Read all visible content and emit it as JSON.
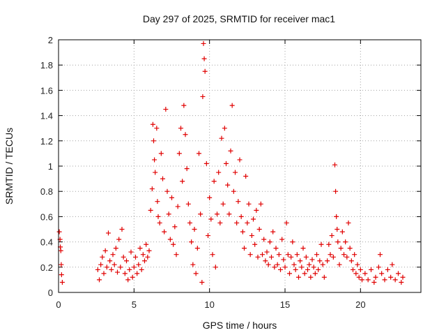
{
  "chart_data": {
    "type": "scatter",
    "title": "Day 297 of 2025, SRMTID for receiver mac1",
    "xlabel": "GPS time / hours",
    "ylabel": "SRMTID / TECUs",
    "xlim": [
      0,
      24
    ],
    "ylim": [
      0,
      2
    ],
    "x_ticks": [
      0,
      5,
      10,
      15,
      20
    ],
    "y_ticks": [
      0,
      0.2,
      0.4,
      0.6,
      0.8,
      1,
      1.2,
      1.4,
      1.6,
      1.8,
      2
    ],
    "x_tick_labels": [
      "0",
      "5",
      "10",
      "15",
      "20"
    ],
    "y_tick_labels": [
      "0",
      "0.2",
      "0.4",
      "0.6",
      "0.8",
      "1",
      "1.2",
      "1.4",
      "1.6",
      "1.8",
      "2"
    ],
    "grid": true,
    "marker": "plus",
    "series": [
      {
        "name": "SRMTID",
        "color": "#e00000",
        "points": [
          [
            0.05,
            0.48
          ],
          [
            0.1,
            0.42
          ],
          [
            0.12,
            0.36
          ],
          [
            0.15,
            0.33
          ],
          [
            0.18,
            0.22
          ],
          [
            0.2,
            0.14
          ],
          [
            0.25,
            0.08
          ],
          [
            2.6,
            0.18
          ],
          [
            2.7,
            0.1
          ],
          [
            2.8,
            0.22
          ],
          [
            2.9,
            0.28
          ],
          [
            3.0,
            0.15
          ],
          [
            3.1,
            0.33
          ],
          [
            3.2,
            0.2
          ],
          [
            3.3,
            0.47
          ],
          [
            3.4,
            0.25
          ],
          [
            3.5,
            0.18
          ],
          [
            3.6,
            0.3
          ],
          [
            3.7,
            0.22
          ],
          [
            3.8,
            0.35
          ],
          [
            3.9,
            0.16
          ],
          [
            4.0,
            0.42
          ],
          [
            4.1,
            0.2
          ],
          [
            4.2,
            0.5
          ],
          [
            4.3,
            0.28
          ],
          [
            4.4,
            0.15
          ],
          [
            4.5,
            0.25
          ],
          [
            4.6,
            0.1
          ],
          [
            4.7,
            0.18
          ],
          [
            4.8,
            0.32
          ],
          [
            4.9,
            0.12
          ],
          [
            5.0,
            0.2
          ],
          [
            5.1,
            0.28
          ],
          [
            5.2,
            0.15
          ],
          [
            5.3,
            0.22
          ],
          [
            5.4,
            0.35
          ],
          [
            5.5,
            0.18
          ],
          [
            5.6,
            0.3
          ],
          [
            5.7,
            0.25
          ],
          [
            5.8,
            0.38
          ],
          [
            5.9,
            0.28
          ],
          [
            6.0,
            0.33
          ],
          [
            6.1,
            0.65
          ],
          [
            6.2,
            0.82
          ],
          [
            6.25,
            1.33
          ],
          [
            6.3,
            1.2
          ],
          [
            6.35,
            1.05
          ],
          [
            6.4,
            0.95
          ],
          [
            6.5,
            1.3
          ],
          [
            6.55,
            0.72
          ],
          [
            6.6,
            0.6
          ],
          [
            6.7,
            0.55
          ],
          [
            6.8,
            1.1
          ],
          [
            6.9,
            0.9
          ],
          [
            7.0,
            0.48
          ],
          [
            7.1,
            1.45
          ],
          [
            7.2,
            0.8
          ],
          [
            7.3,
            0.62
          ],
          [
            7.4,
            0.42
          ],
          [
            7.5,
            0.75
          ],
          [
            7.6,
            0.38
          ],
          [
            7.7,
            0.52
          ],
          [
            7.8,
            0.3
          ],
          [
            7.9,
            0.68
          ],
          [
            8.0,
            1.1
          ],
          [
            8.1,
            1.3
          ],
          [
            8.2,
            0.88
          ],
          [
            8.3,
            1.48
          ],
          [
            8.4,
            1.25
          ],
          [
            8.5,
            0.98
          ],
          [
            8.6,
            0.7
          ],
          [
            8.7,
            0.55
          ],
          [
            8.8,
            0.4
          ],
          [
            8.9,
            0.22
          ],
          [
            9.0,
            0.5
          ],
          [
            9.1,
            0.15
          ],
          [
            9.2,
            0.35
          ],
          [
            9.3,
            1.1
          ],
          [
            9.4,
            0.62
          ],
          [
            9.5,
            0.08
          ],
          [
            9.55,
            1.55
          ],
          [
            9.6,
            1.97
          ],
          [
            9.65,
            1.85
          ],
          [
            9.7,
            1.75
          ],
          [
            9.8,
            1.02
          ],
          [
            9.9,
            0.45
          ],
          [
            10.0,
            0.75
          ],
          [
            10.1,
            0.58
          ],
          [
            10.2,
            0.3
          ],
          [
            10.3,
            0.88
          ],
          [
            10.4,
            0.2
          ],
          [
            10.5,
            0.62
          ],
          [
            10.6,
            0.95
          ],
          [
            10.7,
            0.55
          ],
          [
            10.8,
            1.22
          ],
          [
            10.9,
            0.7
          ],
          [
            11.0,
            1.3
          ],
          [
            11.1,
            1.02
          ],
          [
            11.2,
            0.85
          ],
          [
            11.3,
            0.62
          ],
          [
            11.4,
            1.12
          ],
          [
            11.5,
            1.48
          ],
          [
            11.6,
            0.8
          ],
          [
            11.7,
            0.95
          ],
          [
            11.8,
            0.55
          ],
          [
            11.9,
            0.72
          ],
          [
            12.0,
            1.05
          ],
          [
            12.1,
            0.6
          ],
          [
            12.2,
            0.48
          ],
          [
            12.3,
            0.35
          ],
          [
            12.4,
            0.92
          ],
          [
            12.5,
            0.55
          ],
          [
            12.6,
            0.7
          ],
          [
            12.7,
            0.3
          ],
          [
            12.8,
            0.45
          ],
          [
            12.9,
            0.58
          ],
          [
            13.0,
            0.38
          ],
          [
            13.1,
            0.65
          ],
          [
            13.2,
            0.28
          ],
          [
            13.3,
            0.5
          ],
          [
            13.4,
            0.7
          ],
          [
            13.5,
            0.3
          ],
          [
            13.6,
            0.42
          ],
          [
            13.7,
            0.25
          ],
          [
            13.8,
            0.32
          ],
          [
            13.9,
            0.22
          ],
          [
            14.0,
            0.4
          ],
          [
            14.1,
            0.28
          ],
          [
            14.2,
            0.48
          ],
          [
            14.3,
            0.2
          ],
          [
            14.4,
            0.35
          ],
          [
            14.5,
            0.22
          ],
          [
            14.6,
            0.3
          ],
          [
            14.7,
            0.18
          ],
          [
            14.8,
            0.42
          ],
          [
            14.9,
            0.26
          ],
          [
            15.0,
            0.2
          ],
          [
            15.1,
            0.55
          ],
          [
            15.2,
            0.3
          ],
          [
            15.3,
            0.15
          ],
          [
            15.4,
            0.28
          ],
          [
            15.5,
            0.4
          ],
          [
            15.6,
            0.22
          ],
          [
            15.7,
            0.18
          ],
          [
            15.8,
            0.3
          ],
          [
            15.9,
            0.12
          ],
          [
            16.0,
            0.25
          ],
          [
            16.1,
            0.2
          ],
          [
            16.2,
            0.35
          ],
          [
            16.3,
            0.15
          ],
          [
            16.4,
            0.28
          ],
          [
            16.5,
            0.18
          ],
          [
            16.6,
            0.22
          ],
          [
            16.7,
            0.12
          ],
          [
            16.8,
            0.26
          ],
          [
            16.9,
            0.2
          ],
          [
            17.0,
            0.15
          ],
          [
            17.1,
            0.3
          ],
          [
            17.2,
            0.18
          ],
          [
            17.3,
            0.25
          ],
          [
            17.4,
            0.38
          ],
          [
            17.5,
            0.22
          ],
          [
            17.6,
            0.12
          ],
          [
            17.8,
            0.25
          ],
          [
            17.9,
            0.38
          ],
          [
            18.0,
            0.3
          ],
          [
            18.1,
            0.45
          ],
          [
            18.2,
            0.28
          ],
          [
            18.3,
            1.01
          ],
          [
            18.35,
            0.8
          ],
          [
            18.4,
            0.6
          ],
          [
            18.45,
            0.5
          ],
          [
            18.5,
            0.4
          ],
          [
            18.6,
            0.22
          ],
          [
            18.7,
            0.35
          ],
          [
            18.8,
            0.48
          ],
          [
            18.9,
            0.3
          ],
          [
            19.0,
            0.4
          ],
          [
            19.1,
            0.28
          ],
          [
            19.2,
            0.55
          ],
          [
            19.3,
            0.35
          ],
          [
            19.4,
            0.25
          ],
          [
            19.5,
            0.18
          ],
          [
            19.6,
            0.3
          ],
          [
            19.7,
            0.15
          ],
          [
            19.8,
            0.22
          ],
          [
            19.9,
            0.12
          ],
          [
            20.0,
            0.18
          ],
          [
            20.1,
            0.1
          ],
          [
            20.3,
            0.15
          ],
          [
            20.5,
            0.1
          ],
          [
            20.7,
            0.18
          ],
          [
            20.9,
            0.08
          ],
          [
            21.0,
            0.12
          ],
          [
            21.2,
            0.2
          ],
          [
            21.3,
            0.3
          ],
          [
            21.4,
            0.15
          ],
          [
            21.6,
            0.1
          ],
          [
            21.8,
            0.18
          ],
          [
            22.0,
            0.12
          ],
          [
            22.1,
            0.22
          ],
          [
            22.3,
            0.1
          ],
          [
            22.5,
            0.15
          ],
          [
            22.7,
            0.08
          ],
          [
            22.8,
            0.12
          ]
        ]
      }
    ]
  }
}
